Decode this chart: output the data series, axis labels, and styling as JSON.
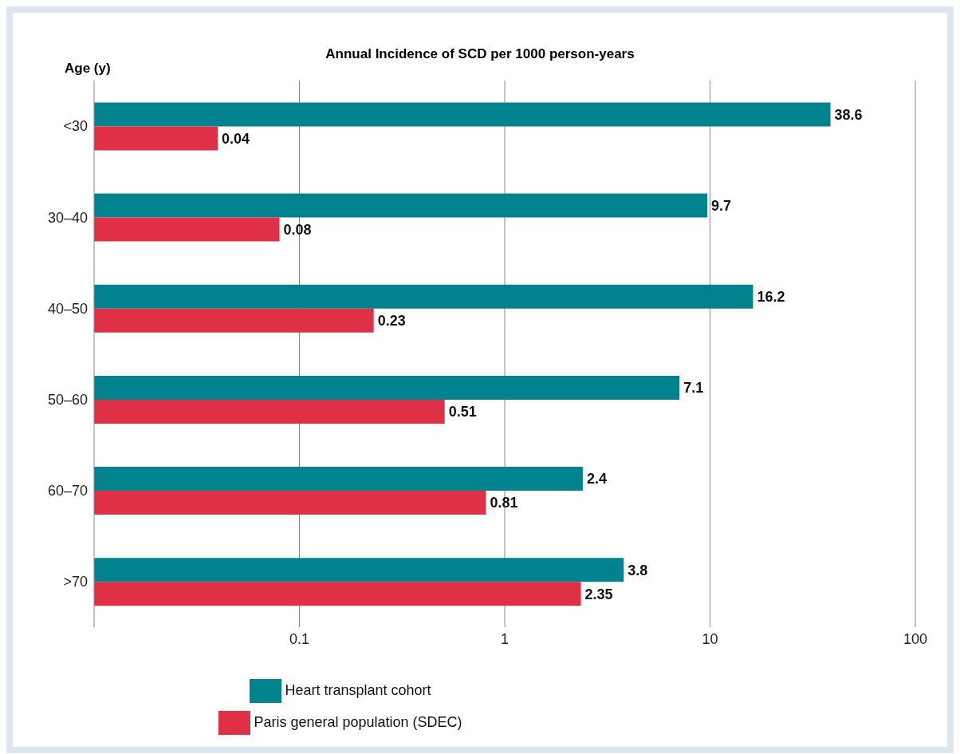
{
  "chart_data": {
    "type": "bar",
    "orientation": "horizontal",
    "title": "Annual Incidence of SCD per 1000 person-years",
    "ylabel": "Age (y)",
    "categories": [
      "<30",
      "30–40",
      "40–50",
      "50–60",
      "60–70",
      ">70"
    ],
    "series": [
      {
        "name": "Heart transplant cohort",
        "color": "#00838f",
        "values": [
          38.6,
          9.7,
          16.2,
          7.1,
          2.4,
          3.8
        ]
      },
      {
        "name": "Paris general population (SDEC)",
        "color": "#e03046",
        "values": [
          0.04,
          0.08,
          0.23,
          0.51,
          0.81,
          2.35
        ]
      }
    ],
    "log": "x",
    "xlim": [
      0.01,
      100
    ],
    "xticks": [
      0.1,
      1,
      10,
      100
    ],
    "grid": "x",
    "legend": "bottom",
    "data_labels": true
  }
}
